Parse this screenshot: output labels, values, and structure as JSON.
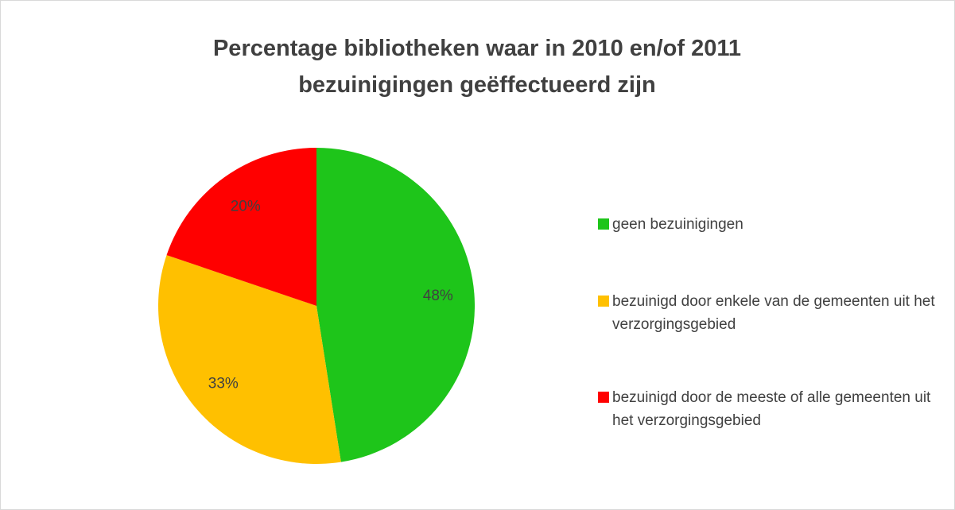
{
  "chart_data": {
    "type": "pie",
    "title": "Percentage bibliotheken waar in 2010 en/of 2011 bezuinigingen geëffectueerd zijn",
    "categories": [
      "geen bezuinigingen",
      "bezuinigd door enkele van de gemeenten uit het verzorgingsgebied",
      "bezuinigd door de meeste of alle gemeenten uit het verzorgingsgebied"
    ],
    "values": [
      48,
      33,
      20
    ],
    "value_labels": [
      "48%",
      "33%",
      "20%"
    ],
    "colors": [
      "#1ec51a",
      "#ffc000",
      "#ff0000"
    ],
    "legend": "right"
  }
}
